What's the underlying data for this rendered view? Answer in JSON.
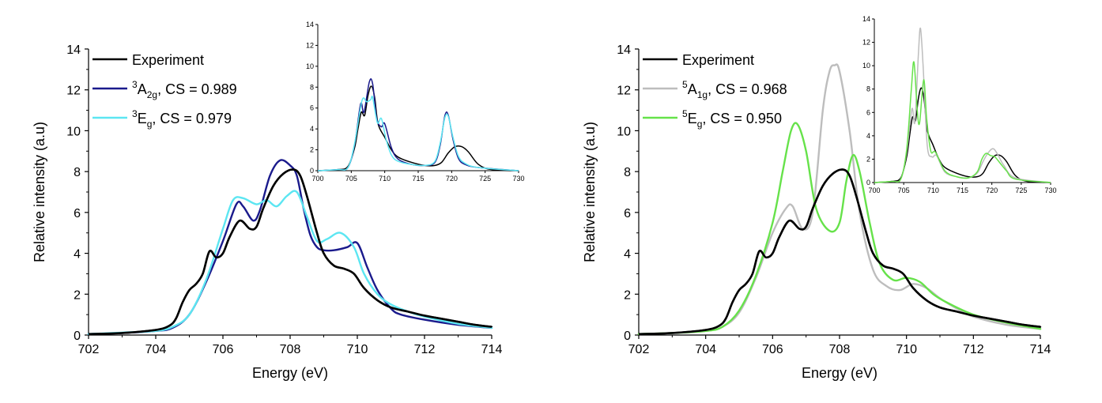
{
  "chart_data": [
    {
      "type": "line",
      "xlabel": "Energy (eV)",
      "ylabel": "Relative intensity (a.u)",
      "xlim": [
        702,
        714
      ],
      "ylim": [
        0,
        14
      ],
      "xticks": [
        702,
        704,
        706,
        708,
        710,
        712,
        714
      ],
      "yticks": [
        0,
        2,
        4,
        6,
        8,
        10,
        12,
        14
      ],
      "legend_position": "top-left",
      "series": [
        {
          "name": "Experiment",
          "label": {
            "pre": "",
            "sup": "",
            "main": "Experiment",
            "sub": "",
            "post": ""
          },
          "color": "#000000",
          "x": [
            702,
            703,
            704,
            704.4,
            704.6,
            704.8,
            705.0,
            705.2,
            705.4,
            705.6,
            705.8,
            706.0,
            706.2,
            706.5,
            706.8,
            707.0,
            707.2,
            707.5,
            707.8,
            708.1,
            708.3,
            708.5,
            708.8,
            709.0,
            709.3,
            709.6,
            709.9,
            710.2,
            710.6,
            711.0,
            711.5,
            712.0,
            712.5,
            713.0,
            713.5,
            714.0
          ],
          "y": [
            0.05,
            0.1,
            0.25,
            0.45,
            0.8,
            1.6,
            2.2,
            2.5,
            3.0,
            4.1,
            3.8,
            4.0,
            4.8,
            5.6,
            5.2,
            5.3,
            6.2,
            7.3,
            7.9,
            8.1,
            7.8,
            6.8,
            5.0,
            4.0,
            3.4,
            3.25,
            3.0,
            2.3,
            1.7,
            1.35,
            1.15,
            0.95,
            0.8,
            0.65,
            0.5,
            0.4
          ]
        },
        {
          "name": "3A2g, CS = 0.989",
          "label": {
            "pre": "",
            "sup": "3",
            "main": "A",
            "sub": "2g",
            "post": ", CS = 0.989"
          },
          "color": "#1a1a8c",
          "x": [
            702,
            703,
            704,
            704.5,
            705,
            705.5,
            706.0,
            706.4,
            706.6,
            706.9,
            707.1,
            707.4,
            707.7,
            708.0,
            708.2,
            708.4,
            708.6,
            708.8,
            709.0,
            709.3,
            709.7,
            710.0,
            710.3,
            710.6,
            711.0,
            711.3,
            712,
            713,
            714
          ],
          "y": [
            0.05,
            0.1,
            0.2,
            0.35,
            1.0,
            2.6,
            4.6,
            6.4,
            6.3,
            5.6,
            6.1,
            7.8,
            8.55,
            8.3,
            7.8,
            6.2,
            4.9,
            4.3,
            4.15,
            4.15,
            4.3,
            4.5,
            3.3,
            2.2,
            1.3,
            1.0,
            0.75,
            0.5,
            0.35
          ]
        },
        {
          "name": "3Eg, CS = 0.979",
          "label": {
            "pre": "",
            "sup": "3",
            "main": "E",
            "sub": "g",
            "post": ", CS = 0.979"
          },
          "color": "#5ce6f2",
          "x": [
            702,
            703,
            704,
            704.5,
            705,
            705.5,
            706.0,
            706.3,
            706.6,
            707.0,
            707.3,
            707.6,
            707.9,
            708.2,
            708.5,
            708.8,
            709.1,
            709.5,
            709.9,
            710.2,
            710.6,
            711.0,
            711.5,
            712,
            713,
            714
          ],
          "y": [
            0.05,
            0.12,
            0.2,
            0.4,
            1.0,
            2.7,
            5.2,
            6.6,
            6.7,
            6.4,
            6.6,
            6.3,
            6.8,
            7.0,
            5.8,
            4.6,
            4.7,
            5.0,
            4.3,
            3.0,
            2.0,
            1.5,
            1.15,
            0.9,
            0.55,
            0.35
          ]
        }
      ],
      "inset": {
        "xlim": [
          700,
          730
        ],
        "ylim": [
          0,
          14
        ],
        "xticks": [
          700,
          705,
          710,
          715,
          720,
          725,
          730
        ],
        "yticks": [
          0,
          2,
          4,
          6,
          8,
          10,
          12,
          14
        ],
        "series": [
          {
            "color": "#000000",
            "x": [
              700,
              703,
              704.5,
              705.5,
              706,
              706.5,
              707,
              707.5,
              708,
              708.5,
              709,
              710,
              711,
              712,
              714,
              716,
              717.5,
              718.5,
              719.5,
              720.5,
              721.5,
              722.5,
              724,
              726,
              730
            ],
            "y": [
              0,
              0.1,
              0.4,
              2.2,
              4.0,
              5.6,
              5.3,
              7.2,
              8.1,
              7.0,
              4.5,
              3.2,
              2.0,
              1.3,
              0.8,
              0.5,
              0.5,
              0.8,
              1.7,
              2.3,
              2.3,
              1.8,
              0.6,
              0.1,
              0
            ]
          },
          {
            "color": "#1a1a8c",
            "x": [
              700,
              703,
              704.5,
              705.5,
              706.4,
              706.9,
              707.7,
              708.2,
              708.8,
              709.5,
              710,
              711,
              712,
              714,
              716,
              717.5,
              718.3,
              719,
              719.5,
              720.2,
              721,
              722,
              724,
              730
            ],
            "y": [
              0,
              0.1,
              0.3,
              2.5,
              6.4,
              5.6,
              8.5,
              8.3,
              5.0,
              4.2,
              4.5,
              2.2,
              1.1,
              0.6,
              0.5,
              0.8,
              2.5,
              5.3,
              5.3,
              3.0,
              1.2,
              0.6,
              0.3,
              0
            ]
          },
          {
            "color": "#5ce6f2",
            "x": [
              700,
              703,
              704.5,
              705.5,
              706.6,
              707.3,
              707.9,
              708.2,
              708.9,
              709.5,
              710.2,
              711,
              712,
              714,
              716,
              717.5,
              718.3,
              719,
              719.5,
              720.2,
              721,
              722,
              724,
              730
            ],
            "y": [
              0,
              0.1,
              0.3,
              2.6,
              6.7,
              6.6,
              6.8,
              7.0,
              4.6,
              5.0,
              3.0,
              1.5,
              0.9,
              0.6,
              0.5,
              0.9,
              2.7,
              5.1,
              5.2,
              3.2,
              1.4,
              0.7,
              0.3,
              0
            ]
          }
        ]
      }
    },
    {
      "type": "line",
      "xlabel": "Energy (eV)",
      "ylabel": "Relative intensity (a.u)",
      "xlim": [
        702,
        714
      ],
      "ylim": [
        0,
        14
      ],
      "xticks": [
        702,
        704,
        706,
        708,
        710,
        712,
        714
      ],
      "yticks": [
        0,
        2,
        4,
        6,
        8,
        10,
        12,
        14
      ],
      "legend_position": "top-left",
      "series": [
        {
          "name": "Experiment",
          "label": {
            "pre": "",
            "sup": "",
            "main": "Experiment",
            "sub": "",
            "post": ""
          },
          "color": "#000000",
          "x": [
            702,
            703,
            704,
            704.4,
            704.6,
            704.8,
            705.0,
            705.2,
            705.4,
            705.6,
            705.8,
            706.0,
            706.2,
            706.5,
            706.8,
            707.0,
            707.2,
            707.5,
            707.8,
            708.1,
            708.3,
            708.5,
            708.8,
            709.0,
            709.3,
            709.6,
            709.9,
            710.2,
            710.6,
            711.0,
            711.5,
            712.0,
            712.5,
            713.0,
            713.5,
            714.0
          ],
          "y": [
            0.05,
            0.1,
            0.25,
            0.45,
            0.8,
            1.6,
            2.2,
            2.5,
            3.0,
            4.1,
            3.8,
            4.0,
            4.8,
            5.6,
            5.2,
            5.3,
            6.2,
            7.3,
            7.9,
            8.1,
            7.8,
            6.8,
            5.0,
            4.0,
            3.4,
            3.25,
            3.0,
            2.3,
            1.7,
            1.35,
            1.15,
            0.95,
            0.8,
            0.65,
            0.5,
            0.4
          ]
        },
        {
          "name": "5A1g, CS = 0.968",
          "label": {
            "pre": "",
            "sup": "5",
            "main": "A",
            "sub": "1g",
            "post": ", CS = 0.968"
          },
          "color": "#bdbdbd",
          "x": [
            702,
            703,
            704,
            704.5,
            705,
            705.5,
            706.0,
            706.4,
            706.6,
            706.9,
            707.2,
            707.5,
            707.7,
            707.85,
            708.0,
            708.3,
            708.6,
            709.0,
            709.4,
            709.8,
            710.2,
            710.6,
            711.0,
            711.5,
            712,
            713,
            714
          ],
          "y": [
            0.05,
            0.1,
            0.2,
            0.4,
            1.1,
            2.8,
            5.0,
            6.2,
            6.3,
            5.2,
            6.0,
            11.0,
            12.9,
            13.2,
            12.9,
            10.0,
            6.0,
            3.2,
            2.4,
            2.2,
            2.5,
            2.3,
            1.8,
            1.3,
            0.9,
            0.5,
            0.3
          ]
        },
        {
          "name": "5Eg, CS = 0.950",
          "label": {
            "pre": "",
            "sup": "5",
            "main": "E",
            "sub": "g",
            "post": ", CS = 0.950"
          },
          "color": "#66e24a",
          "x": [
            702,
            703,
            704,
            704.5,
            705,
            705.5,
            706.0,
            706.3,
            706.55,
            706.75,
            707.0,
            707.3,
            707.7,
            708.0,
            708.2,
            708.4,
            708.6,
            708.9,
            709.2,
            709.6,
            710.0,
            710.4,
            710.8,
            711.2,
            712,
            713,
            714
          ],
          "y": [
            0.05,
            0.1,
            0.2,
            0.4,
            1.2,
            2.9,
            5.5,
            8.0,
            10.0,
            10.3,
            9.0,
            6.2,
            5.1,
            5.5,
            7.5,
            8.8,
            8.0,
            5.5,
            3.5,
            2.7,
            2.8,
            2.6,
            2.0,
            1.6,
            1.0,
            0.6,
            0.3
          ]
        }
      ],
      "inset": {
        "xlim": [
          700,
          730
        ],
        "ylim": [
          0,
          14
        ],
        "xticks": [
          700,
          705,
          710,
          715,
          720,
          725,
          730
        ],
        "yticks": [
          0,
          2,
          4,
          6,
          8,
          10,
          12,
          14
        ],
        "series": [
          {
            "color": "#000000",
            "x": [
              700,
              703,
              704.5,
              705.5,
              706,
              706.5,
              707,
              707.5,
              708,
              708.5,
              709,
              710,
              711,
              712,
              714,
              716,
              717.5,
              718.5,
              719.5,
              720.5,
              721.5,
              722.5,
              724,
              726,
              730
            ],
            "y": [
              0,
              0.1,
              0.4,
              2.2,
              4.0,
              5.6,
              5.3,
              7.2,
              8.1,
              7.0,
              4.5,
              3.2,
              2.0,
              1.3,
              0.8,
              0.5,
              0.5,
              0.8,
              1.7,
              2.3,
              2.3,
              1.8,
              0.6,
              0.1,
              0
            ]
          },
          {
            "color": "#bdbdbd",
            "x": [
              700,
              703,
              704.5,
              705.5,
              706.4,
              706.9,
              707.5,
              707.85,
              708.3,
              709.0,
              709.8,
              710.6,
              712,
              714,
              716,
              717.5,
              718.5,
              719.3,
              720.2,
              721,
              722,
              724,
              730
            ],
            "y": [
              0,
              0.1,
              0.3,
              2.6,
              6.3,
              5.2,
              11.0,
              13.2,
              10.0,
              3.2,
              2.2,
              2.3,
              0.9,
              0.5,
              0.4,
              0.8,
              1.8,
              2.5,
              2.9,
              2.4,
              1.5,
              0.4,
              0
            ]
          },
          {
            "color": "#66e24a",
            "x": [
              700,
              703,
              704.5,
              705.5,
              706.3,
              706.75,
              707.3,
              707.7,
              708.4,
              708.9,
              709.6,
              710.4,
              712,
              714,
              716,
              717.5,
              718.3,
              719.0,
              719.8,
              720.5,
              721.5,
              722.5,
              724,
              730
            ],
            "y": [
              0,
              0.1,
              0.3,
              2.8,
              8.0,
              10.3,
              6.2,
              5.1,
              8.8,
              5.5,
              2.7,
              2.6,
              1.0,
              0.5,
              0.4,
              0.9,
              2.0,
              2.5,
              2.3,
              2.2,
              1.6,
              1.0,
              0.3,
              0
            ]
          }
        ]
      }
    }
  ]
}
